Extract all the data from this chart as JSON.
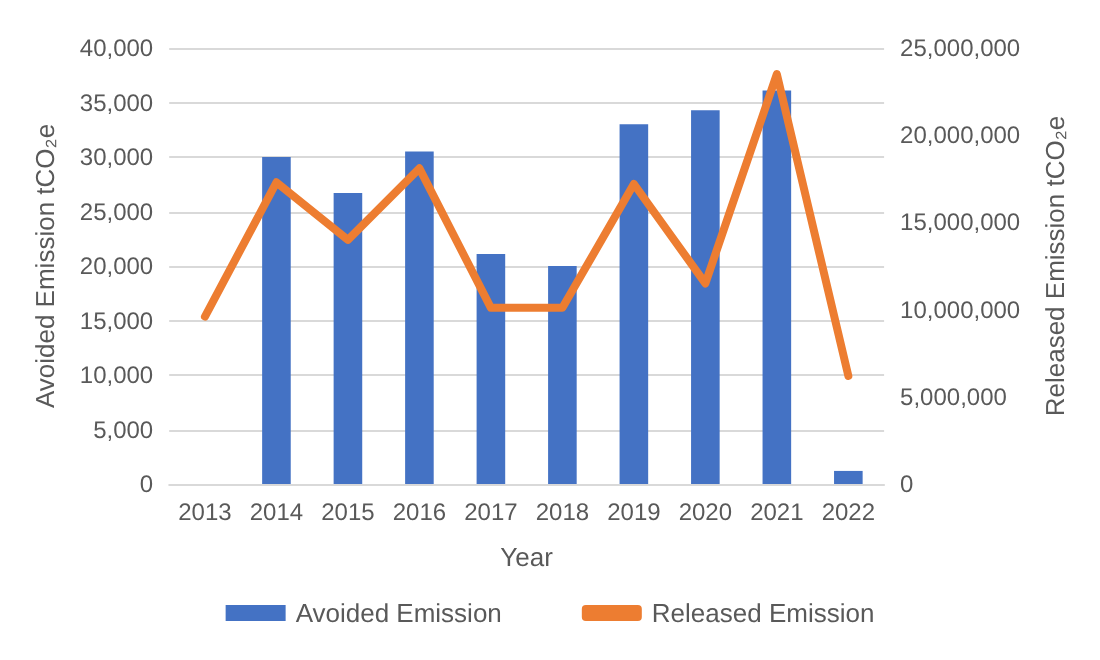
{
  "chart_data": {
    "type": "bar",
    "xlabel": "Year",
    "ylabel": "Avoided Emission tCO₂e",
    "y2label": "Released Emission tCO₂e",
    "categories": [
      "2013",
      "2014",
      "2015",
      "2016",
      "2017",
      "2018",
      "2019",
      "2020",
      "2021",
      "2022"
    ],
    "series": [
      {
        "name": "Avoided Emission",
        "color": "#4472c4",
        "values": [
          null,
          30000,
          26700,
          30500,
          21100,
          20000,
          33000,
          34300,
          36100,
          1200
        ]
      },
      {
        "name": "Released Emission",
        "type": "line",
        "axis": "y2",
        "color": "#ed7d31",
        "values": [
          9600000,
          17300000,
          14000000,
          18100000,
          10100000,
          10100000,
          17200000,
          11500000,
          23500000,
          6200000
        ]
      }
    ],
    "ylim": [
      0,
      40000
    ],
    "yticks": [
      0,
      {
        "value": 5000,
        "label": "5,000"
      },
      {
        "value": 10000,
        "label": "10,000"
      },
      {
        "value": 15000,
        "label": "15,000"
      },
      {
        "value": 20000,
        "label": "20,000"
      },
      {
        "value": 25000,
        "label": "25,000"
      },
      {
        "value": 30000,
        "label": "30,000"
      },
      {
        "value": 35000,
        "label": "35,000"
      },
      {
        "value": 40000,
        "label": "40,000"
      }
    ],
    "y2lim": [
      0,
      25000000
    ],
    "y2ticks": [
      0,
      {
        "value": 5000000,
        "label": "5,000,000"
      },
      {
        "value": 10000000,
        "label": "10,000,000"
      },
      {
        "value": 15000000,
        "label": "15,000,000"
      },
      {
        "value": 20000000,
        "label": "20,000,000"
      },
      {
        "value": 25000000,
        "label": "25,000,000"
      }
    ],
    "grid": "y",
    "legend": "bottom",
    "marker": "none"
  }
}
